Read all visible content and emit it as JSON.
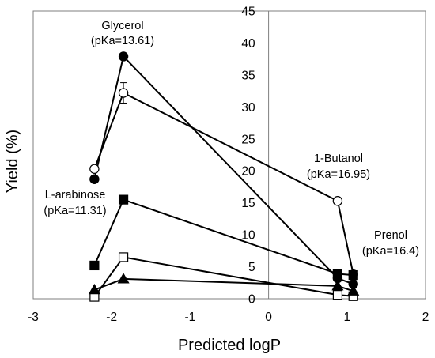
{
  "chart_data": {
    "type": "scatter",
    "xlabel": "Predicted logP",
    "ylabel": "Yield (%)",
    "xlim": [
      -3,
      2
    ],
    "ylim": [
      0,
      45
    ],
    "xticks": [
      -3,
      -2,
      -1,
      0,
      1,
      2
    ],
    "yticks": [
      0,
      5,
      10,
      15,
      20,
      25,
      30,
      35,
      40,
      45
    ],
    "grid": false,
    "legend": "none",
    "annotations": [
      {
        "name": "glycerol",
        "lines": [
          "Glycerol",
          "(pKa=13.61)"
        ]
      },
      {
        "name": "l-arabinose",
        "lines": [
          "L-arabinose",
          "(pKa=11.31)"
        ]
      },
      {
        "name": "1-butanol",
        "lines": [
          "1-Butanol",
          "(pKa=16.95)"
        ]
      },
      {
        "name": "prenol",
        "lines": [
          "Prenol",
          "(pKa=16.4)"
        ]
      }
    ],
    "series": [
      {
        "marker": "circle-filled",
        "x": [
          -2.22,
          -1.85,
          0.88,
          1.08
        ],
        "y": [
          18.7,
          37.9,
          3.2,
          2.3
        ]
      },
      {
        "marker": "circle-open",
        "x": [
          -2.22,
          -1.85,
          0.88,
          1.08
        ],
        "y": [
          20.3,
          32.2,
          15.3,
          3.8
        ],
        "error": [
          0,
          1.6,
          0,
          0
        ]
      },
      {
        "marker": "square-filled",
        "x": [
          -2.22,
          -1.85,
          0.88,
          1.08
        ],
        "y": [
          5.2,
          15.5,
          3.9,
          3.7
        ]
      },
      {
        "marker": "square-open",
        "x": [
          -2.22,
          -1.85,
          0.88,
          1.08
        ],
        "y": [
          0.3,
          6.5,
          0.6,
          0.4
        ]
      },
      {
        "marker": "triangle-filled",
        "x": [
          -2.22,
          -1.85,
          0.88,
          1.08
        ],
        "y": [
          1.4,
          3.1,
          2.0,
          1.2
        ]
      }
    ]
  }
}
